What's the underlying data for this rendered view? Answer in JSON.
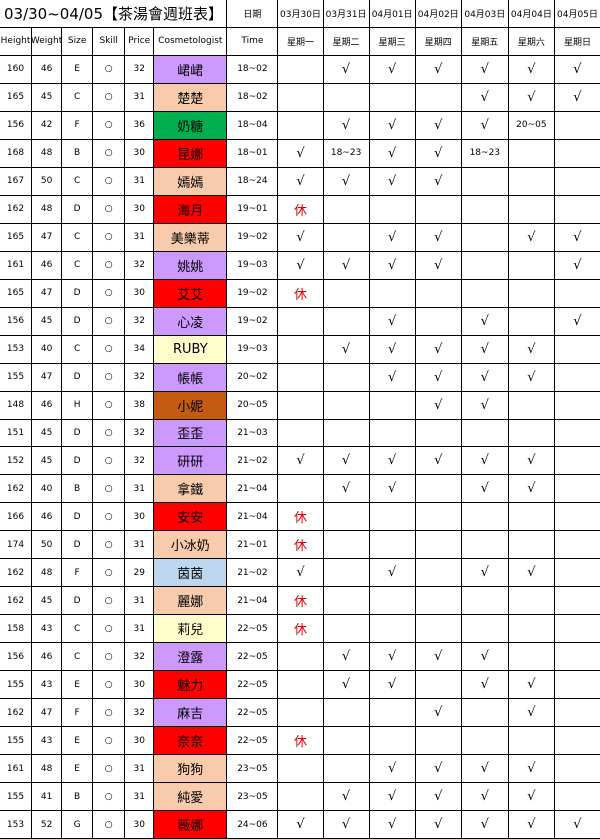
{
  "header": {
    "title": "03/30~04/05【茶湯會週班表】",
    "date_label": "日期",
    "dates": [
      "03月30日",
      "03月31日",
      "04月01日",
      "04月02日",
      "04月03日",
      "04月04日",
      "04月05日"
    ],
    "columns": [
      "Height",
      "Weight",
      "Size",
      "Skill",
      "Price",
      "Cosmetologist",
      "Time"
    ],
    "weekdays": [
      "星期一",
      "星期二",
      "星期三",
      "星期四",
      "星期五",
      "星期六",
      "星期日"
    ]
  },
  "rows": [
    {
      "height": 160,
      "weight": 46,
      "size": "E",
      "skill": "○",
      "price": 32,
      "name": "峮峮",
      "color": "#cc99ff",
      "time": "18~02",
      "days": [
        null,
        "√",
        "√",
        "√",
        "√",
        "√",
        "√"
      ]
    },
    {
      "height": 165,
      "weight": 45,
      "size": "C",
      "skill": "○",
      "price": 31,
      "name": "楚楚",
      "color": "#f8cbad",
      "time": "18~02",
      "days": [
        null,
        null,
        null,
        null,
        "√",
        "√",
        "√"
      ]
    },
    {
      "height": 156,
      "weight": 42,
      "size": "F",
      "skill": "○",
      "price": 36,
      "name": "奶糖",
      "color": "#00b050",
      "time": "18~04",
      "days": [
        null,
        "√",
        "√",
        "√",
        "√",
        "20~05",
        null
      ]
    },
    {
      "height": 168,
      "weight": 48,
      "size": "B",
      "skill": "○",
      "price": 30,
      "name": "昆娜",
      "color": "#ff0000",
      "time": "18~01",
      "days": [
        "√",
        "18~23",
        "√",
        "√",
        "18~23",
        null,
        null
      ]
    },
    {
      "height": 167,
      "weight": 50,
      "size": "C",
      "skill": "○",
      "price": 31,
      "name": "嫣嫣",
      "color": "#f8cbad",
      "time": "18~24",
      "days": [
        "√",
        "√",
        "√",
        "√",
        null,
        null,
        null
      ]
    },
    {
      "height": 162,
      "weight": 48,
      "size": "D",
      "skill": "○",
      "price": 30,
      "name": "海月",
      "color": "#ff0000",
      "time": "19~01",
      "days": [
        "休",
        null,
        null,
        null,
        null,
        null,
        null
      ]
    },
    {
      "height": 165,
      "weight": 47,
      "size": "C",
      "skill": "○",
      "price": 31,
      "name": "美樂蒂",
      "color": "#f8cbad",
      "time": "19~02",
      "days": [
        "√",
        null,
        "√",
        "√",
        null,
        "√",
        "√"
      ]
    },
    {
      "height": 161,
      "weight": 46,
      "size": "C",
      "skill": "○",
      "price": 32,
      "name": "姚姚",
      "color": "#cc99ff",
      "time": "19~03",
      "days": [
        "√",
        "√",
        "√",
        "√",
        null,
        null,
        "√"
      ]
    },
    {
      "height": 165,
      "weight": 47,
      "size": "D",
      "skill": "○",
      "price": 30,
      "name": "艾艾",
      "color": "#ff0000",
      "time": "19~02",
      "days": [
        "休",
        null,
        null,
        null,
        null,
        null,
        null
      ]
    },
    {
      "height": 156,
      "weight": 45,
      "size": "D",
      "skill": "○",
      "price": 32,
      "name": "心凌",
      "color": "#cc99ff",
      "time": "19~02",
      "days": [
        null,
        null,
        "√",
        null,
        "√",
        null,
        "√"
      ]
    },
    {
      "height": 153,
      "weight": 40,
      "size": "C",
      "skill": "○",
      "price": 34,
      "name": "RUBY",
      "color": "#ffffcc",
      "time": "19~03",
      "days": [
        null,
        "√",
        "√",
        "√",
        "√",
        "√",
        null
      ]
    },
    {
      "height": 155,
      "weight": 47,
      "size": "D",
      "skill": "○",
      "price": 32,
      "name": "帳帳",
      "color": "#cc99ff",
      "time": "20~02",
      "days": [
        null,
        null,
        "√",
        "√",
        "√",
        "√",
        null
      ]
    },
    {
      "height": 148,
      "weight": 46,
      "size": "H",
      "skill": "○",
      "price": 38,
      "name": "小妮",
      "color": "#c55a11",
      "time": "20~05",
      "days": [
        null,
        null,
        null,
        "√",
        "√",
        null,
        null
      ]
    },
    {
      "height": 151,
      "weight": 45,
      "size": "D",
      "skill": "○",
      "price": 32,
      "name": "歪歪",
      "color": "#cc99ff",
      "time": "21~03",
      "days": [
        null,
        null,
        null,
        null,
        null,
        null,
        null
      ]
    },
    {
      "height": 152,
      "weight": 45,
      "size": "D",
      "skill": "○",
      "price": 32,
      "name": "研研",
      "color": "#cc99ff",
      "time": "21~02",
      "days": [
        "√",
        "√",
        "√",
        "√",
        "√",
        "√",
        null
      ]
    },
    {
      "height": 162,
      "weight": 40,
      "size": "B",
      "skill": "○",
      "price": 31,
      "name": "拿鐵",
      "color": "#f8cbad",
      "time": "21~04",
      "days": [
        null,
        "√",
        "√",
        null,
        "√",
        "√",
        null
      ]
    },
    {
      "height": 166,
      "weight": 46,
      "size": "D",
      "skill": "○",
      "price": 30,
      "name": "安安",
      "color": "#ff0000",
      "time": "21~04",
      "days": [
        "休",
        null,
        null,
        null,
        null,
        null,
        null
      ]
    },
    {
      "height": 174,
      "weight": 50,
      "size": "D",
      "skill": "○",
      "price": 31,
      "name": "小冰奶",
      "color": "#f8cbad",
      "time": "21~01",
      "days": [
        "休",
        null,
        null,
        null,
        null,
        null,
        null
      ]
    },
    {
      "height": 162,
      "weight": 48,
      "size": "F",
      "skill": "○",
      "price": 29,
      "name": "茵茵",
      "color": "#bdd7ee",
      "time": "21~02",
      "days": [
        "√",
        null,
        "√",
        null,
        "√",
        "√",
        null
      ]
    },
    {
      "height": 162,
      "weight": 45,
      "size": "D",
      "skill": "○",
      "price": 31,
      "name": "麗娜",
      "color": "#f8cbad",
      "time": "21~04",
      "days": [
        "休",
        null,
        null,
        null,
        null,
        null,
        null
      ]
    },
    {
      "height": 158,
      "weight": 43,
      "size": "C",
      "skill": "○",
      "price": 31,
      "name": "莉兒",
      "color": "#ffffcc",
      "time": "22~05",
      "days": [
        "休",
        null,
        null,
        null,
        null,
        null,
        null
      ]
    },
    {
      "height": 156,
      "weight": 46,
      "size": "C",
      "skill": "○",
      "price": 32,
      "name": "澄露",
      "color": "#cc99ff",
      "time": "22~05",
      "days": [
        null,
        "√",
        "√",
        "√",
        "√",
        null,
        null
      ]
    },
    {
      "height": 155,
      "weight": 43,
      "size": "E",
      "skill": "○",
      "price": 30,
      "name": "魅力",
      "color": "#ff0000",
      "time": "22~05",
      "days": [
        null,
        "√",
        "√",
        null,
        "√",
        "√",
        null
      ]
    },
    {
      "height": 162,
      "weight": 47,
      "size": "F",
      "skill": "○",
      "price": 32,
      "name": "麻吉",
      "color": "#cc99ff",
      "time": "22~05",
      "days": [
        null,
        null,
        null,
        "√",
        null,
        "√",
        null
      ]
    },
    {
      "height": 155,
      "weight": 43,
      "size": "E",
      "skill": "○",
      "price": 30,
      "name": "奈奈",
      "color": "#ff0000",
      "time": "22~05",
      "days": [
        "休",
        null,
        null,
        null,
        null,
        null,
        null
      ]
    },
    {
      "height": 161,
      "weight": 48,
      "size": "E",
      "skill": "○",
      "price": 31,
      "name": "狗狗",
      "color": "#f8cbad",
      "time": "23~05",
      "days": [
        null,
        null,
        "√",
        "√",
        "√",
        "√",
        null
      ]
    },
    {
      "height": 155,
      "weight": 41,
      "size": "B",
      "skill": "○",
      "price": 31,
      "name": "純愛",
      "color": "#f8cbad",
      "time": "23~05",
      "days": [
        null,
        "√",
        "√",
        "√",
        "√",
        "√",
        null
      ]
    },
    {
      "height": 153,
      "weight": 52,
      "size": "G",
      "skill": "○",
      "price": 30,
      "name": "薇娜",
      "color": "#ff0000",
      "time": "24~06",
      "days": [
        "√",
        "√",
        "√",
        "√",
        "√",
        "√",
        "√"
      ]
    }
  ]
}
